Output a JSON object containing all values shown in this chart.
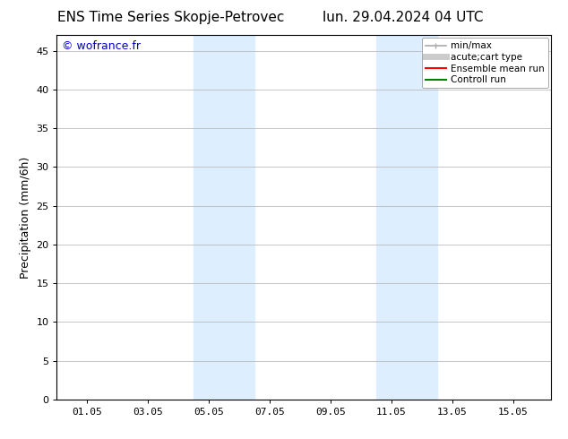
{
  "title_left": "ENS Time Series Skopje-Petrovec",
  "title_right": "lun. 29.04.2024 04 UTC",
  "ylabel": "Precipitation (mm/6h)",
  "watermark": "© wofrance.fr",
  "watermark_color": "#0000cc",
  "xlim_left": 29.0,
  "xlim_right": 45.25,
  "ylim_bottom": 0,
  "ylim_top": 47,
  "yticks": [
    0,
    5,
    10,
    15,
    20,
    25,
    30,
    35,
    40,
    45
  ],
  "xtick_labels": [
    "01.05",
    "03.05",
    "05.05",
    "07.05",
    "09.05",
    "11.05",
    "13.05",
    "15.05"
  ],
  "xtick_positions": [
    30,
    32,
    34,
    36,
    38,
    40,
    42,
    44
  ],
  "shaded_bands": [
    {
      "x_start": 33.5,
      "x_end": 35.5
    },
    {
      "x_start": 39.5,
      "x_end": 41.5
    }
  ],
  "shaded_color": "#ddeeff",
  "shaded_alpha": 1.0,
  "grid_color": "#bbbbbb",
  "tick_color": "#000000",
  "background_color": "#ffffff",
  "legend_items": [
    {
      "label": "min/max",
      "color": "#aaaaaa",
      "lw": 1.2,
      "type": "errorbar"
    },
    {
      "label": "acute;cart type",
      "color": "#cccccc",
      "lw": 5,
      "type": "line"
    },
    {
      "label": "Ensemble mean run",
      "color": "#ff0000",
      "lw": 1.5,
      "type": "line"
    },
    {
      "label": "Controll run",
      "color": "#008000",
      "lw": 1.5,
      "type": "line"
    }
  ],
  "title_fontsize": 11,
  "label_fontsize": 9,
  "tick_fontsize": 8,
  "legend_fontsize": 7.5,
  "watermark_fontsize": 9
}
